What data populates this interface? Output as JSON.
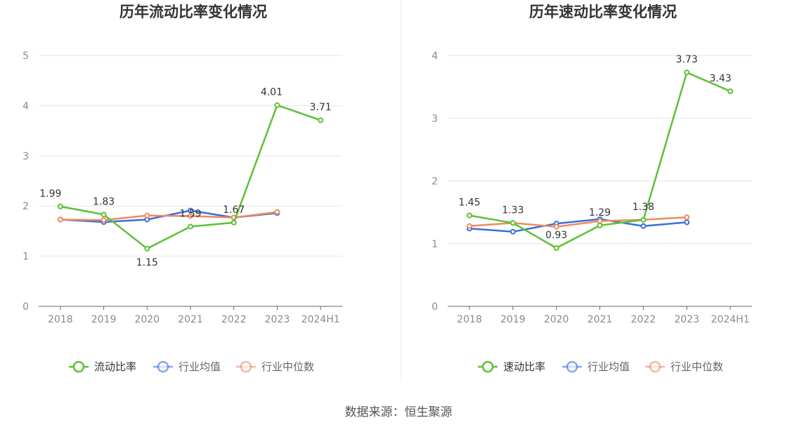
{
  "source_label": "数据来源：恒生聚源",
  "colors": {
    "primary": "#5cc136",
    "avg": "#3b6fd8",
    "median": "#ef8a62",
    "grid": "#e6e6e6",
    "axis": "#666666"
  },
  "chart_data": [
    {
      "type": "line",
      "title": "历年流动比率变化情况",
      "categories": [
        "2018",
        "2019",
        "2020",
        "2021",
        "2022",
        "2023",
        "2024H1"
      ],
      "ylim": [
        0,
        5
      ],
      "yticks": [
        0,
        1,
        2,
        3,
        4,
        5
      ],
      "grid": true,
      "legend_position": "bottom",
      "series": [
        {
          "name": "流动比率",
          "key": "primary",
          "values": [
            1.99,
            1.83,
            1.15,
            1.59,
            1.67,
            4.01,
            3.71
          ],
          "labels": [
            "1.99",
            "1.83",
            "1.15",
            "1.59",
            "1.67",
            "4.01",
            "3.71"
          ]
        },
        {
          "name": "行业均值",
          "key": "avg",
          "values": [
            1.73,
            1.68,
            1.73,
            1.91,
            1.77,
            1.86,
            null
          ]
        },
        {
          "name": "行业中位数",
          "key": "median",
          "values": [
            1.73,
            1.72,
            1.81,
            1.8,
            1.77,
            1.88,
            null
          ]
        }
      ]
    },
    {
      "type": "line",
      "title": "历年速动比率变化情况",
      "categories": [
        "2018",
        "2019",
        "2020",
        "2021",
        "2022",
        "2023",
        "2024H1"
      ],
      "ylim": [
        0,
        4
      ],
      "yticks": [
        0,
        1,
        2,
        3,
        4
      ],
      "grid": true,
      "legend_position": "bottom",
      "series": [
        {
          "name": "速动比率",
          "key": "primary",
          "values": [
            1.45,
            1.33,
            0.93,
            1.29,
            1.38,
            3.73,
            3.43
          ],
          "labels": [
            "1.45",
            "1.33",
            "0.93",
            "1.29",
            "1.38",
            "3.73",
            "3.43"
          ]
        },
        {
          "name": "行业均值",
          "key": "avg",
          "values": [
            1.24,
            1.19,
            1.32,
            1.39,
            1.28,
            1.34,
            null
          ]
        },
        {
          "name": "行业中位数",
          "key": "median",
          "values": [
            1.28,
            1.33,
            1.27,
            1.36,
            1.38,
            1.42,
            null
          ]
        }
      ]
    }
  ]
}
